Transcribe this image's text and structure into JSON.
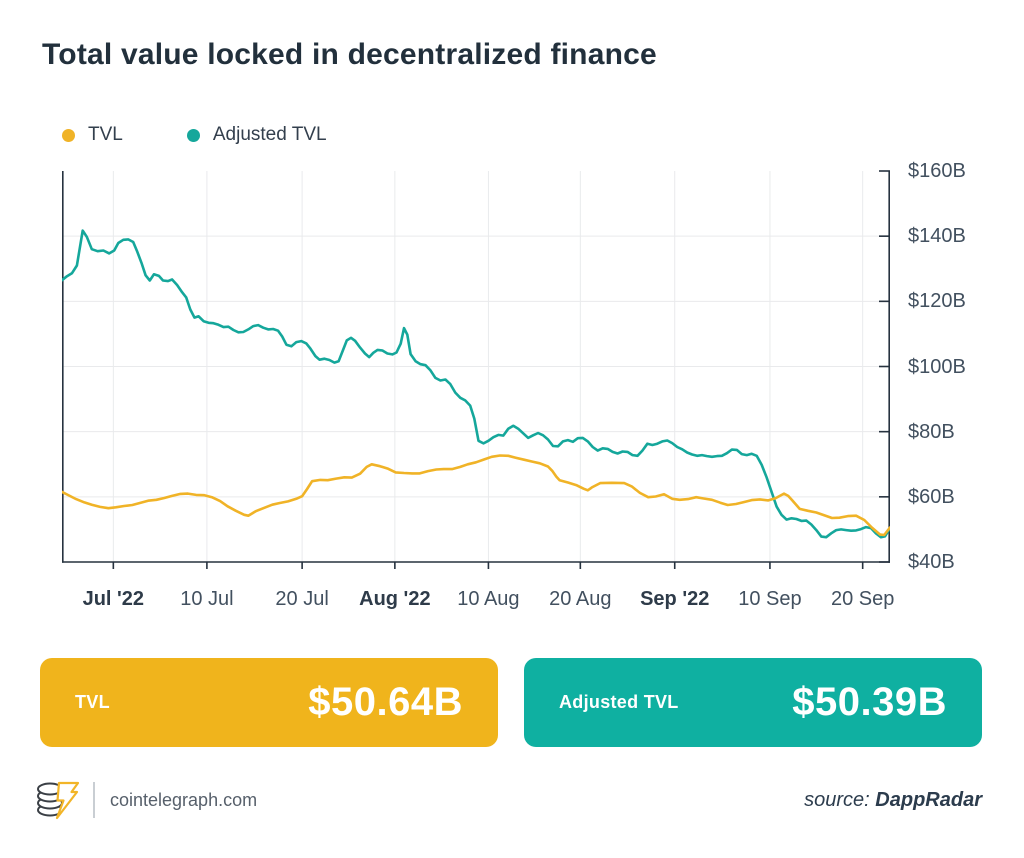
{
  "title": "Total value locked in decentralized finance",
  "legend": [
    {
      "label": "TVL",
      "color": "#F0B327"
    },
    {
      "label": "Adjusted TVL",
      "color": "#15A79B"
    }
  ],
  "chart_data": {
    "type": "line",
    "title": "Total value locked in decentralized finance",
    "unit": "USD billions",
    "xlabel": "",
    "ylabel": "",
    "ylim": [
      40,
      160
    ],
    "grid": true,
    "legend_position": "top-left",
    "axis_color": "#26323f",
    "grid_color": "#e9eaec",
    "y_ticks": [
      {
        "label": "$160B",
        "value": 160
      },
      {
        "label": "$140B",
        "value": 140
      },
      {
        "label": "$120B",
        "value": 120
      },
      {
        "label": "$100B",
        "value": 100
      },
      {
        "label": "$80B",
        "value": 80
      },
      {
        "label": "$60B",
        "value": 60
      },
      {
        "label": "$40B",
        "value": 40
      }
    ],
    "x_ticks": [
      {
        "label": "Jul '22",
        "f": 0.062,
        "bold": true
      },
      {
        "label": "10 Jul",
        "f": 0.175,
        "bold": false
      },
      {
        "label": "20 Jul",
        "f": 0.29,
        "bold": false
      },
      {
        "label": "Aug '22",
        "f": 0.402,
        "bold": true
      },
      {
        "label": "10 Aug",
        "f": 0.515,
        "bold": false
      },
      {
        "label": "20 Aug",
        "f": 0.626,
        "bold": false
      },
      {
        "label": "Sep '22",
        "f": 0.74,
        "bold": true
      },
      {
        "label": "10 Sep",
        "f": 0.855,
        "bold": false
      },
      {
        "label": "20 Sep",
        "f": 0.967,
        "bold": false
      }
    ],
    "x_range_note": "x given as fraction of plot width, late Jun 2022 to ~22 Sep 2022",
    "series": [
      {
        "name": "TVL",
        "color": "#F0B327",
        "final_value": "$50.64B",
        "points": [
          [
            0.0,
            61.5
          ],
          [
            0.007,
            60.6
          ],
          [
            0.017,
            59.3
          ],
          [
            0.027,
            58.3
          ],
          [
            0.036,
            57.6
          ],
          [
            0.046,
            56.9
          ],
          [
            0.056,
            56.5
          ],
          [
            0.065,
            56.8
          ],
          [
            0.075,
            57.2
          ],
          [
            0.085,
            57.5
          ],
          [
            0.094,
            58.1
          ],
          [
            0.104,
            58.8
          ],
          [
            0.114,
            59.1
          ],
          [
            0.123,
            59.6
          ],
          [
            0.133,
            60.3
          ],
          [
            0.143,
            60.9
          ],
          [
            0.152,
            61.0
          ],
          [
            0.162,
            60.6
          ],
          [
            0.172,
            60.5
          ],
          [
            0.181,
            59.9
          ],
          [
            0.191,
            58.7
          ],
          [
            0.2,
            57.1
          ],
          [
            0.21,
            55.7
          ],
          [
            0.22,
            54.5
          ],
          [
            0.225,
            54.2
          ],
          [
            0.234,
            55.6
          ],
          [
            0.244,
            56.6
          ],
          [
            0.254,
            57.6
          ],
          [
            0.263,
            58.1
          ],
          [
            0.273,
            58.6
          ],
          [
            0.283,
            59.4
          ],
          [
            0.29,
            60.2
          ],
          [
            0.296,
            62.4
          ],
          [
            0.302,
            64.8
          ],
          [
            0.312,
            65.2
          ],
          [
            0.321,
            65.1
          ],
          [
            0.331,
            65.6
          ],
          [
            0.341,
            66.0
          ],
          [
            0.35,
            65.9
          ],
          [
            0.36,
            67.1
          ],
          [
            0.368,
            69.2
          ],
          [
            0.374,
            70.0
          ],
          [
            0.384,
            69.4
          ],
          [
            0.394,
            68.6
          ],
          [
            0.403,
            67.5
          ],
          [
            0.413,
            67.3
          ],
          [
            0.423,
            67.2
          ],
          [
            0.432,
            67.2
          ],
          [
            0.442,
            67.9
          ],
          [
            0.452,
            68.4
          ],
          [
            0.461,
            68.5
          ],
          [
            0.471,
            68.5
          ],
          [
            0.481,
            69.2
          ],
          [
            0.49,
            70.0
          ],
          [
            0.5,
            70.6
          ],
          [
            0.51,
            71.5
          ],
          [
            0.519,
            72.3
          ],
          [
            0.529,
            72.7
          ],
          [
            0.539,
            72.6
          ],
          [
            0.548,
            72.0
          ],
          [
            0.558,
            71.4
          ],
          [
            0.568,
            70.8
          ],
          [
            0.577,
            70.3
          ],
          [
            0.587,
            69.3
          ],
          [
            0.592,
            68.0
          ],
          [
            0.597,
            66.2
          ],
          [
            0.601,
            65.1
          ],
          [
            0.611,
            64.4
          ],
          [
            0.621,
            63.6
          ],
          [
            0.63,
            62.5
          ],
          [
            0.635,
            62.0
          ],
          [
            0.64,
            62.9
          ],
          [
            0.65,
            64.2
          ],
          [
            0.664,
            64.3
          ],
          [
            0.679,
            64.2
          ],
          [
            0.688,
            63.2
          ],
          [
            0.698,
            61.2
          ],
          [
            0.708,
            59.9
          ],
          [
            0.717,
            60.1
          ],
          [
            0.727,
            60.8
          ],
          [
            0.737,
            59.4
          ],
          [
            0.746,
            59.1
          ],
          [
            0.756,
            59.3
          ],
          [
            0.766,
            59.9
          ],
          [
            0.775,
            59.5
          ],
          [
            0.785,
            59.1
          ],
          [
            0.795,
            58.2
          ],
          [
            0.804,
            57.5
          ],
          [
            0.814,
            57.8
          ],
          [
            0.824,
            58.4
          ],
          [
            0.833,
            59.0
          ],
          [
            0.843,
            59.2
          ],
          [
            0.853,
            58.9
          ],
          [
            0.862,
            59.6
          ],
          [
            0.872,
            61.0
          ],
          [
            0.877,
            60.3
          ],
          [
            0.882,
            58.9
          ],
          [
            0.891,
            56.3
          ],
          [
            0.901,
            55.7
          ],
          [
            0.911,
            55.2
          ],
          [
            0.92,
            54.4
          ],
          [
            0.93,
            53.5
          ],
          [
            0.939,
            53.6
          ],
          [
            0.949,
            54.1
          ],
          [
            0.959,
            54.2
          ],
          [
            0.969,
            52.9
          ],
          [
            0.978,
            50.6
          ],
          [
            0.988,
            48.4
          ],
          [
            0.993,
            48.3
          ],
          [
            1.0,
            50.6
          ]
        ]
      },
      {
        "name": "Adjusted TVL",
        "color": "#15A79B",
        "final_value": "$50.39B",
        "points": [
          [
            0.0,
            126.5
          ],
          [
            0.006,
            127.7
          ],
          [
            0.012,
            128.6
          ],
          [
            0.018,
            131.0
          ],
          [
            0.025,
            141.7
          ],
          [
            0.03,
            139.8
          ],
          [
            0.036,
            136.0
          ],
          [
            0.043,
            135.4
          ],
          [
            0.05,
            135.6
          ],
          [
            0.057,
            134.7
          ],
          [
            0.063,
            135.6
          ],
          [
            0.068,
            137.9
          ],
          [
            0.074,
            138.9
          ],
          [
            0.08,
            139.0
          ],
          [
            0.086,
            138.2
          ],
          [
            0.091,
            135.2
          ],
          [
            0.096,
            131.8
          ],
          [
            0.101,
            128.0
          ],
          [
            0.106,
            126.4
          ],
          [
            0.111,
            128.3
          ],
          [
            0.117,
            127.8
          ],
          [
            0.122,
            126.4
          ],
          [
            0.128,
            126.2
          ],
          [
            0.133,
            126.7
          ],
          [
            0.139,
            125.0
          ],
          [
            0.145,
            122.8
          ],
          [
            0.15,
            121.2
          ],
          [
            0.155,
            117.5
          ],
          [
            0.16,
            115.0
          ],
          [
            0.165,
            115.4
          ],
          [
            0.171,
            113.9
          ],
          [
            0.177,
            113.4
          ],
          [
            0.183,
            113.3
          ],
          [
            0.189,
            112.8
          ],
          [
            0.195,
            112.1
          ],
          [
            0.201,
            112.2
          ],
          [
            0.207,
            111.2
          ],
          [
            0.213,
            110.5
          ],
          [
            0.219,
            110.6
          ],
          [
            0.225,
            111.4
          ],
          [
            0.231,
            112.4
          ],
          [
            0.237,
            112.7
          ],
          [
            0.243,
            111.9
          ],
          [
            0.249,
            111.4
          ],
          [
            0.255,
            111.5
          ],
          [
            0.261,
            111.0
          ],
          [
            0.266,
            109.2
          ],
          [
            0.271,
            106.7
          ],
          [
            0.277,
            106.2
          ],
          [
            0.283,
            107.5
          ],
          [
            0.289,
            107.8
          ],
          [
            0.295,
            107.1
          ],
          [
            0.3,
            105.5
          ],
          [
            0.306,
            103.2
          ],
          [
            0.311,
            102.1
          ],
          [
            0.317,
            102.4
          ],
          [
            0.323,
            102.0
          ],
          [
            0.329,
            101.2
          ],
          [
            0.334,
            101.6
          ],
          [
            0.339,
            104.8
          ],
          [
            0.344,
            108.0
          ],
          [
            0.349,
            108.8
          ],
          [
            0.354,
            107.9
          ],
          [
            0.36,
            105.8
          ],
          [
            0.366,
            104.0
          ],
          [
            0.371,
            102.9
          ],
          [
            0.376,
            104.2
          ],
          [
            0.381,
            105.1
          ],
          [
            0.387,
            104.9
          ],
          [
            0.393,
            104.0
          ],
          [
            0.399,
            103.7
          ],
          [
            0.404,
            104.3
          ],
          [
            0.409,
            107.0
          ],
          [
            0.413,
            111.8
          ],
          [
            0.417,
            109.8
          ],
          [
            0.421,
            103.8
          ],
          [
            0.427,
            101.6
          ],
          [
            0.433,
            100.7
          ],
          [
            0.439,
            100.4
          ],
          [
            0.445,
            98.8
          ],
          [
            0.451,
            96.5
          ],
          [
            0.457,
            95.7
          ],
          [
            0.463,
            96.0
          ],
          [
            0.469,
            94.6
          ],
          [
            0.475,
            92.0
          ],
          [
            0.481,
            90.4
          ],
          [
            0.487,
            89.6
          ],
          [
            0.493,
            88.0
          ],
          [
            0.498,
            84.0
          ],
          [
            0.503,
            77.2
          ],
          [
            0.509,
            76.4
          ],
          [
            0.515,
            77.2
          ],
          [
            0.521,
            78.3
          ],
          [
            0.527,
            79.0
          ],
          [
            0.533,
            78.8
          ],
          [
            0.539,
            80.9
          ],
          [
            0.545,
            81.8
          ],
          [
            0.551,
            80.9
          ],
          [
            0.557,
            79.5
          ],
          [
            0.563,
            78.1
          ],
          [
            0.569,
            78.9
          ],
          [
            0.575,
            79.6
          ],
          [
            0.581,
            78.9
          ],
          [
            0.587,
            77.6
          ],
          [
            0.593,
            75.6
          ],
          [
            0.599,
            75.5
          ],
          [
            0.605,
            77.0
          ],
          [
            0.611,
            77.4
          ],
          [
            0.617,
            76.9
          ],
          [
            0.623,
            78.0
          ],
          [
            0.629,
            78.1
          ],
          [
            0.635,
            77.0
          ],
          [
            0.641,
            75.3
          ],
          [
            0.647,
            74.2
          ],
          [
            0.653,
            74.9
          ],
          [
            0.659,
            74.7
          ],
          [
            0.665,
            73.8
          ],
          [
            0.671,
            73.3
          ],
          [
            0.677,
            73.9
          ],
          [
            0.683,
            73.8
          ],
          [
            0.689,
            72.8
          ],
          [
            0.695,
            72.6
          ],
          [
            0.701,
            74.2
          ],
          [
            0.707,
            76.3
          ],
          [
            0.713,
            75.9
          ],
          [
            0.719,
            76.3
          ],
          [
            0.725,
            77.0
          ],
          [
            0.731,
            77.3
          ],
          [
            0.737,
            76.5
          ],
          [
            0.743,
            75.3
          ],
          [
            0.749,
            74.6
          ],
          [
            0.755,
            73.6
          ],
          [
            0.761,
            73.0
          ],
          [
            0.767,
            72.6
          ],
          [
            0.773,
            72.8
          ],
          [
            0.779,
            72.5
          ],
          [
            0.785,
            72.3
          ],
          [
            0.791,
            72.5
          ],
          [
            0.797,
            72.6
          ],
          [
            0.803,
            73.4
          ],
          [
            0.809,
            74.5
          ],
          [
            0.815,
            74.4
          ],
          [
            0.821,
            73.1
          ],
          [
            0.827,
            72.8
          ],
          [
            0.833,
            73.2
          ],
          [
            0.839,
            72.6
          ],
          [
            0.845,
            69.8
          ],
          [
            0.851,
            66.0
          ],
          [
            0.857,
            61.5
          ],
          [
            0.863,
            57.0
          ],
          [
            0.869,
            54.5
          ],
          [
            0.875,
            53.0
          ],
          [
            0.881,
            53.4
          ],
          [
            0.887,
            53.2
          ],
          [
            0.893,
            52.6
          ],
          [
            0.899,
            52.7
          ],
          [
            0.905,
            51.5
          ],
          [
            0.911,
            49.8
          ],
          [
            0.917,
            47.8
          ],
          [
            0.923,
            47.6
          ],
          [
            0.929,
            48.8
          ],
          [
            0.935,
            49.8
          ],
          [
            0.941,
            50.0
          ],
          [
            0.947,
            49.8
          ],
          [
            0.953,
            49.6
          ],
          [
            0.959,
            49.7
          ],
          [
            0.965,
            50.1
          ],
          [
            0.971,
            50.7
          ],
          [
            0.977,
            50.4
          ],
          [
            0.983,
            48.8
          ],
          [
            0.989,
            47.6
          ],
          [
            0.994,
            47.9
          ],
          [
            1.0,
            50.4
          ]
        ]
      }
    ]
  },
  "cards": [
    {
      "label": "TVL",
      "value": "$50.64B",
      "color": "#F0B41C"
    },
    {
      "label": "Adjusted TVL",
      "value": "$50.39B",
      "color": "#0FB0A1"
    }
  ],
  "footer": {
    "site": "cointelegraph.com",
    "source_prefix": "source:",
    "source_name": "DappRadar"
  }
}
